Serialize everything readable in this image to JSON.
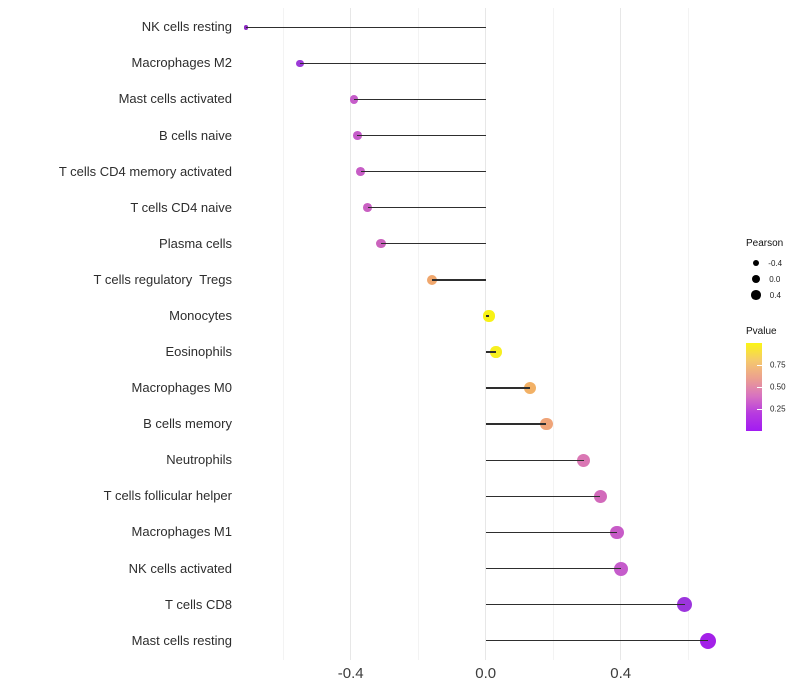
{
  "chart_data": {
    "type": "lollipop",
    "orientation": "horizontal",
    "title": "",
    "xlabel": "",
    "ylabel": "",
    "stem_anchor": 0.0,
    "x_axis": {
      "ticks": [
        -0.4,
        0.0,
        0.4
      ],
      "tick_labels": [
        "-0.4",
        "0.0",
        "0.4"
      ],
      "gridlines": [
        -0.6,
        -0.4,
        -0.2,
        0.0,
        0.2,
        0.4,
        0.6
      ],
      "range": [
        -0.78,
        0.73
      ]
    },
    "rows": [
      {
        "label": "NK cells resting",
        "pearson": -0.71,
        "dot_color": "#8c2bc2",
        "dot_radius": 2.4
      },
      {
        "label": "Macrophages M2",
        "pearson": -0.55,
        "dot_color": "#9d3ad8",
        "dot_radius": 3.6
      },
      {
        "label": "Mast cells activated",
        "pearson": -0.39,
        "dot_color": "#c55cc9",
        "dot_radius": 4.3
      },
      {
        "label": "B cells naive",
        "pearson": -0.38,
        "dot_color": "#c55cc9",
        "dot_radius": 4.3
      },
      {
        "label": "T cells CD4 memory activated",
        "pearson": -0.37,
        "dot_color": "#c75dc6",
        "dot_radius": 4.4
      },
      {
        "label": "T cells CD4 naive",
        "pearson": -0.35,
        "dot_color": "#c960c2",
        "dot_radius": 4.4
      },
      {
        "label": "Plasma cells",
        "pearson": -0.31,
        "dot_color": "#cb63bd",
        "dot_radius": 4.6
      },
      {
        "label": "T cells regulatory  Tregs",
        "pearson": -0.16,
        "dot_color": "#f0a76d",
        "dot_radius": 5.0
      },
      {
        "label": "Monocytes",
        "pearson": 0.01,
        "dot_color": "#f8f215",
        "dot_radius": 5.6
      },
      {
        "label": "Eosinophils",
        "pearson": 0.03,
        "dot_color": "#f7ef20",
        "dot_radius": 5.7
      },
      {
        "label": "Macrophages M0",
        "pearson": 0.13,
        "dot_color": "#f2b166",
        "dot_radius": 6.0
      },
      {
        "label": "B cells memory",
        "pearson": 0.18,
        "dot_color": "#efa478",
        "dot_radius": 6.2
      },
      {
        "label": "Neutrophils",
        "pearson": 0.29,
        "dot_color": "#da77b4",
        "dot_radius": 6.5
      },
      {
        "label": "T cells follicular helper",
        "pearson": 0.34,
        "dot_color": "#d26abb",
        "dot_radius": 6.6
      },
      {
        "label": "Macrophages M1",
        "pearson": 0.39,
        "dot_color": "#c75bc7",
        "dot_radius": 6.9
      },
      {
        "label": "NK cells activated",
        "pearson": 0.4,
        "dot_color": "#c55ccb",
        "dot_radius": 7.0
      },
      {
        "label": "T cells CD8",
        "pearson": 0.59,
        "dot_color": "#9c35dd",
        "dot_radius": 7.6
      },
      {
        "label": "Mast cells resting",
        "pearson": 0.66,
        "dot_color": "#a320e8",
        "dot_radius": 8.0
      }
    ],
    "legend_size": {
      "title": "Pearson",
      "dot_color": "#000000",
      "entries": [
        {
          "label": "-0.4",
          "radius": 3.3
        },
        {
          "label": "0.0",
          "radius": 4.2
        },
        {
          "label": "0.4",
          "radius": 4.8
        }
      ]
    },
    "legend_color": {
      "title": "Pvalue",
      "scale_top_value": 1.0,
      "scale_bottom_value": 0.0,
      "ticks": [
        {
          "value": 0.75,
          "label": "0.75"
        },
        {
          "value": 0.5,
          "label": "0.50"
        },
        {
          "value": 0.25,
          "label": "0.25"
        }
      ],
      "gradient_stops": [
        "#fbf515",
        "#f5c96c",
        "#eca08f",
        "#d873c0",
        "#b73be0",
        "#a21bf2"
      ]
    }
  }
}
